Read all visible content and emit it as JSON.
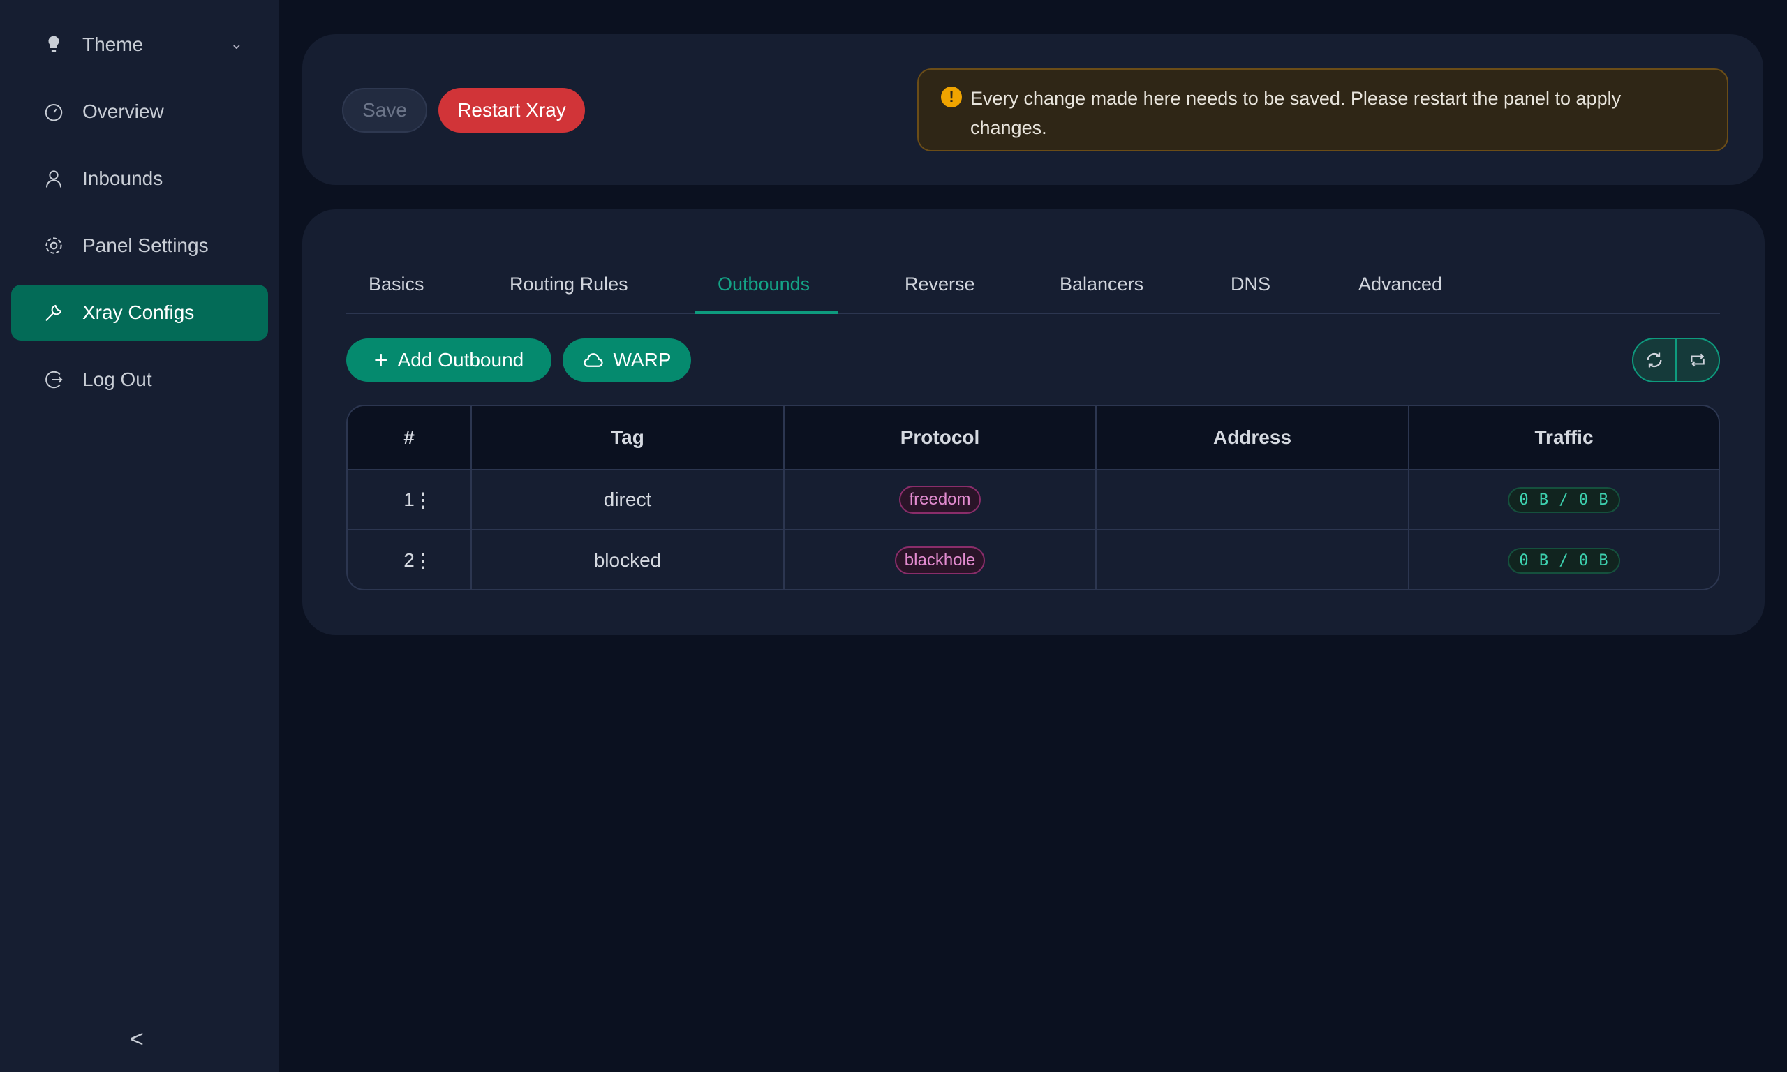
{
  "sidebar": {
    "items": [
      {
        "label": "Theme",
        "icon": "bulb-icon"
      },
      {
        "label": "Overview",
        "icon": "dashboard-icon"
      },
      {
        "label": "Inbounds",
        "icon": "user-icon"
      },
      {
        "label": "Panel Settings",
        "icon": "gear-icon"
      },
      {
        "label": "Xray Configs",
        "icon": "tool-icon",
        "active": true
      },
      {
        "label": "Log Out",
        "icon": "logout-icon"
      }
    ],
    "collapse": "<"
  },
  "toolbar": {
    "save": "Save",
    "restart": "Restart Xray"
  },
  "alert": {
    "text": "Every change made here needs to be saved. Please restart the panel to apply changes."
  },
  "tabs": [
    "Basics",
    "Routing Rules",
    "Outbounds",
    "Reverse",
    "Balancers",
    "DNS",
    "Advanced"
  ],
  "active_tab": "Outbounds",
  "actions": {
    "add": "Add Outbound",
    "warp": "WARP"
  },
  "table": {
    "headers": [
      "#",
      "Tag",
      "Protocol",
      "Address",
      "Traffic"
    ],
    "rows": [
      {
        "num": "1",
        "tag": "direct",
        "protocol": "freedom",
        "address": "",
        "traffic": "0 B / 0 B"
      },
      {
        "num": "2",
        "tag": "blocked",
        "protocol": "blackhole",
        "address": "",
        "traffic": "0 B / 0 B"
      }
    ]
  },
  "colors": {
    "accent": "#036b57",
    "danger": "#d13438",
    "warning": "#f0a400"
  }
}
